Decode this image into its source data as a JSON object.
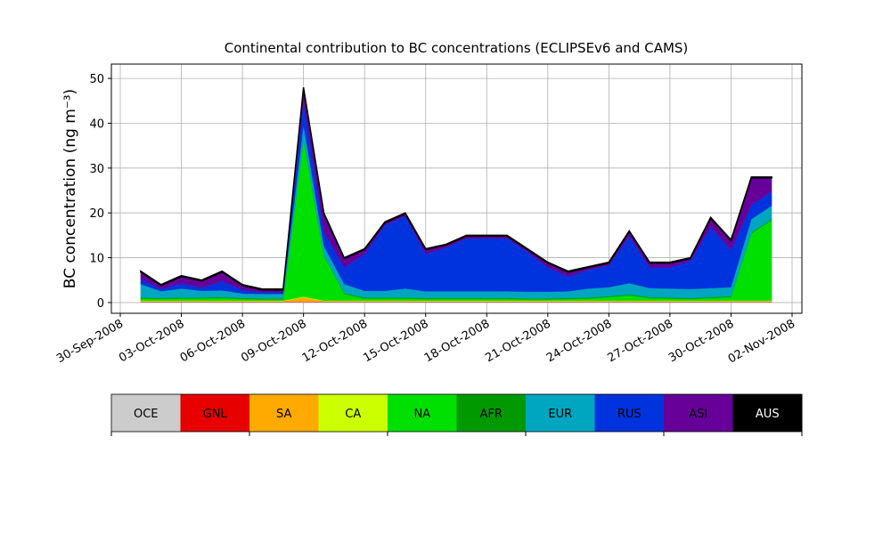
{
  "chart_data": {
    "type": "stacked_area",
    "title": "Continental contribution to BC concentrations (ECLIPSEv6 and CAMS)",
    "y_label": "BC concentration (ng m⁻³)",
    "x": [
      "2008-10-01",
      "2008-10-02",
      "2008-10-03",
      "2008-10-04",
      "2008-10-05",
      "2008-10-06",
      "2008-10-07",
      "2008-10-08",
      "2008-10-09",
      "2008-10-10",
      "2008-10-11",
      "2008-10-12",
      "2008-10-13",
      "2008-10-14",
      "2008-10-15",
      "2008-10-16",
      "2008-10-17",
      "2008-10-18",
      "2008-10-19",
      "2008-10-20",
      "2008-10-21",
      "2008-10-22",
      "2008-10-23",
      "2008-10-24",
      "2008-10-25",
      "2008-10-26",
      "2008-10-27",
      "2008-10-28",
      "2008-10-29",
      "2008-10-30",
      "2008-10-31",
      "2008-11-01"
    ],
    "series": [
      {
        "name": "OCE",
        "color": "#cccccc",
        "values": [
          0.1,
          0.1,
          0.1,
          0.1,
          0.1,
          0.1,
          0.1,
          0.1,
          0.1,
          0.1,
          0.1,
          0.1,
          0.1,
          0.1,
          0.1,
          0.1,
          0.1,
          0.1,
          0.1,
          0.1,
          0.1,
          0.1,
          0.1,
          0.1,
          0.1,
          0.1,
          0.1,
          0.1,
          0.1,
          0.1,
          0.1,
          0.1
        ]
      },
      {
        "name": "GNL",
        "color": "#e60000",
        "values": [
          0.1,
          0.1,
          0.1,
          0.1,
          0.1,
          0.1,
          0.1,
          0.1,
          0.1,
          0.1,
          0.1,
          0.1,
          0.1,
          0.1,
          0.1,
          0.1,
          0.1,
          0.1,
          0.1,
          0.1,
          0.1,
          0.1,
          0.1,
          0.1,
          0.1,
          0.1,
          0.1,
          0.1,
          0.1,
          0.1,
          0.1,
          0.1
        ]
      },
      {
        "name": "SA",
        "color": "#ffaa00",
        "values": [
          0.1,
          0.1,
          0.1,
          0.1,
          0.1,
          0.1,
          0.1,
          0.1,
          1.0,
          0.1,
          0.1,
          0.1,
          0.1,
          0.1,
          0.1,
          0.1,
          0.1,
          0.1,
          0.1,
          0.1,
          0.1,
          0.1,
          0.1,
          0.1,
          0.1,
          0.1,
          0.1,
          0.1,
          0.1,
          0.1,
          0.1,
          0.1
        ]
      },
      {
        "name": "CA",
        "color": "#ccff00",
        "values": [
          0.1,
          0.1,
          0.1,
          0.1,
          0.1,
          0.1,
          0.1,
          0.1,
          0.1,
          0.1,
          0.1,
          0.1,
          0.1,
          0.1,
          0.1,
          0.1,
          0.1,
          0.1,
          0.1,
          0.1,
          0.1,
          0.1,
          0.1,
          0.1,
          0.1,
          0.1,
          0.1,
          0.1,
          0.1,
          0.1,
          0.1,
          0.1
        ]
      },
      {
        "name": "NA",
        "color": "#00e000",
        "values": [
          0.5,
          0.4,
          0.5,
          0.5,
          0.6,
          0.4,
          0.3,
          0.3,
          35,
          10,
          1.5,
          0.5,
          0.5,
          0.5,
          0.4,
          0.4,
          0.4,
          0.4,
          0.4,
          0.3,
          0.3,
          0.4,
          0.5,
          0.8,
          1.2,
          0.6,
          0.5,
          0.4,
          0.6,
          0.8,
          15,
          18
        ]
      },
      {
        "name": "AFR",
        "color": "#009900",
        "values": [
          0.2,
          0.2,
          0.2,
          0.2,
          0.2,
          0.2,
          0.2,
          0.2,
          0.2,
          0.2,
          0.2,
          0.2,
          0.2,
          0.2,
          0.2,
          0.2,
          0.2,
          0.2,
          0.2,
          0.2,
          0.2,
          0.2,
          0.2,
          0.2,
          0.2,
          0.2,
          0.2,
          0.2,
          0.2,
          0.2,
          0.2,
          0.2
        ]
      },
      {
        "name": "EUR",
        "color": "#00a6c0",
        "values": [
          3,
          1.5,
          2,
          1.5,
          1.5,
          1,
          1,
          1,
          3,
          2,
          2,
          1.5,
          1.5,
          2,
          1.5,
          1.5,
          1.5,
          1.5,
          1.5,
          1.5,
          1.5,
          1.5,
          2,
          2,
          2.5,
          2,
          2,
          2,
          2,
          2,
          3,
          3
        ]
      },
      {
        "name": "RUS",
        "color": "#0033dd",
        "values": [
          1.2,
          0.5,
          1.2,
          0.7,
          2.1,
          0.8,
          0.4,
          0.4,
          5.3,
          3.2,
          3.7,
          8.2,
          14.7,
          16.2,
          8.3,
          9.8,
          11.8,
          11.8,
          11.8,
          8.9,
          5.4,
          3.3,
          4.2,
          4.9,
          10.5,
          4.6,
          4.7,
          6.3,
          13.6,
          8.4,
          3.2,
          3.2
        ]
      },
      {
        "name": "ASI",
        "color": "#660099",
        "values": [
          1.5,
          0.8,
          1.5,
          1.5,
          2,
          1,
          0.5,
          0.5,
          3,
          4,
          2,
          1,
          0.5,
          0.5,
          1,
          0.5,
          0.5,
          0.5,
          0.5,
          0.5,
          1,
          1,
          0.5,
          0.5,
          1,
          1,
          1,
          0.5,
          2,
          2,
          6,
          3
        ]
      },
      {
        "name": "AUS",
        "color": "#000000",
        "values": [
          0.2,
          0.2,
          0.2,
          0.2,
          0.2,
          0.2,
          0.2,
          0.2,
          0.2,
          0.2,
          0.2,
          0.2,
          0.2,
          0.2,
          0.2,
          0.2,
          0.2,
          0.2,
          0.2,
          0.2,
          0.2,
          0.2,
          0.2,
          0.2,
          0.2,
          0.2,
          0.2,
          0.2,
          0.2,
          0.2,
          0.2,
          0.2
        ]
      }
    ],
    "xlim": [
      "2008-09-30",
      "2008-11-02"
    ],
    "xticks": [
      {
        "value": "2008-09-30",
        "label": "30-Sep-2008"
      },
      {
        "value": "2008-10-03",
        "label": "03-Oct-2008"
      },
      {
        "value": "2008-10-06",
        "label": "06-Oct-2008"
      },
      {
        "value": "2008-10-09",
        "label": "09-Oct-2008"
      },
      {
        "value": "2008-10-12",
        "label": "12-Oct-2008"
      },
      {
        "value": "2008-10-15",
        "label": "15-Oct-2008"
      },
      {
        "value": "2008-10-18",
        "label": "18-Oct-2008"
      },
      {
        "value": "2008-10-21",
        "label": "21-Oct-2008"
      },
      {
        "value": "2008-10-24",
        "label": "24-Oct-2008"
      },
      {
        "value": "2008-10-27",
        "label": "27-Oct-2008"
      },
      {
        "value": "2008-10-30",
        "label": "30-Oct-2008"
      },
      {
        "value": "2008-11-02",
        "label": "02-Nov-2008"
      }
    ],
    "ylim": [
      -2.4,
      53.2
    ],
    "yticks": [
      0,
      10,
      20,
      30,
      40,
      50
    ],
    "grid": true
  }
}
